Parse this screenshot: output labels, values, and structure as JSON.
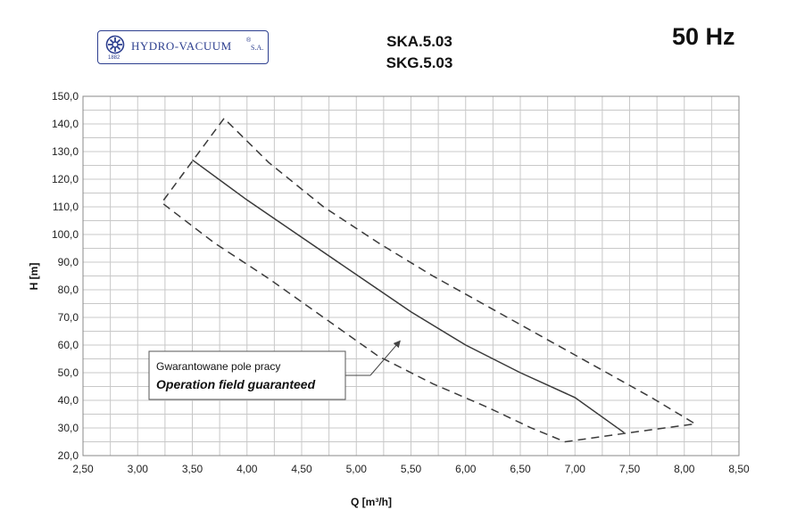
{
  "header": {
    "brand": "HYDRO-VACUUM",
    "brand_suffix": "S.A.",
    "brand_year": "1882",
    "model_1": "SKA.5.03",
    "model_2": "SKG.5.03",
    "frequency": "50 Hz"
  },
  "chart_data": {
    "type": "line",
    "xlabel": "Q [m³/h]",
    "ylabel": "H [m]",
    "xlim": [
      2.5,
      8.5
    ],
    "ylim": [
      20,
      150
    ],
    "x_ticks": [
      "2,50",
      "3,00",
      "3,50",
      "4,00",
      "4,50",
      "5,00",
      "5,50",
      "6,00",
      "6,50",
      "7,00",
      "7,50",
      "8,00",
      "8,50"
    ],
    "y_ticks": [
      "20,0",
      "30,0",
      "40,0",
      "50,0",
      "60,0",
      "70,0",
      "80,0",
      "90,0",
      "100,0",
      "110,0",
      "120,0",
      "130,0",
      "140,0",
      "150,0"
    ],
    "grid": true,
    "series": [
      {
        "style": "solid",
        "points": [
          [
            3.5,
            127
          ],
          [
            4.0,
            112.5
          ],
          [
            4.5,
            99
          ],
          [
            5.0,
            85.5
          ],
          [
            5.5,
            72
          ],
          [
            6.0,
            60
          ],
          [
            6.5,
            50
          ],
          [
            7.0,
            41
          ],
          [
            7.45,
            28.3
          ]
        ]
      },
      {
        "style": "dashed",
        "points": [
          [
            3.79,
            142
          ],
          [
            3.22,
            111.5
          ],
          [
            3.7,
            97
          ],
          [
            4.2,
            84
          ],
          [
            4.7,
            70
          ],
          [
            5.2,
            56
          ],
          [
            5.7,
            46
          ],
          [
            6.2,
            37.5
          ],
          [
            6.6,
            30
          ],
          [
            6.91,
            25
          ],
          [
            7.5,
            28.3
          ],
          [
            8.1,
            31.5
          ],
          [
            7.7,
            41
          ],
          [
            7.2,
            52
          ],
          [
            6.7,
            63
          ],
          [
            6.2,
            74
          ],
          [
            5.7,
            85
          ],
          [
            5.2,
            97
          ],
          [
            4.7,
            110
          ],
          [
            4.2,
            126
          ],
          [
            3.79,
            142
          ]
        ]
      }
    ],
    "annotation": {
      "text_pl": "Gwarantowane pole pracy",
      "text_en": "Operation field guaranteed",
      "arrow_to": [
        5.4,
        61.5
      ]
    }
  }
}
